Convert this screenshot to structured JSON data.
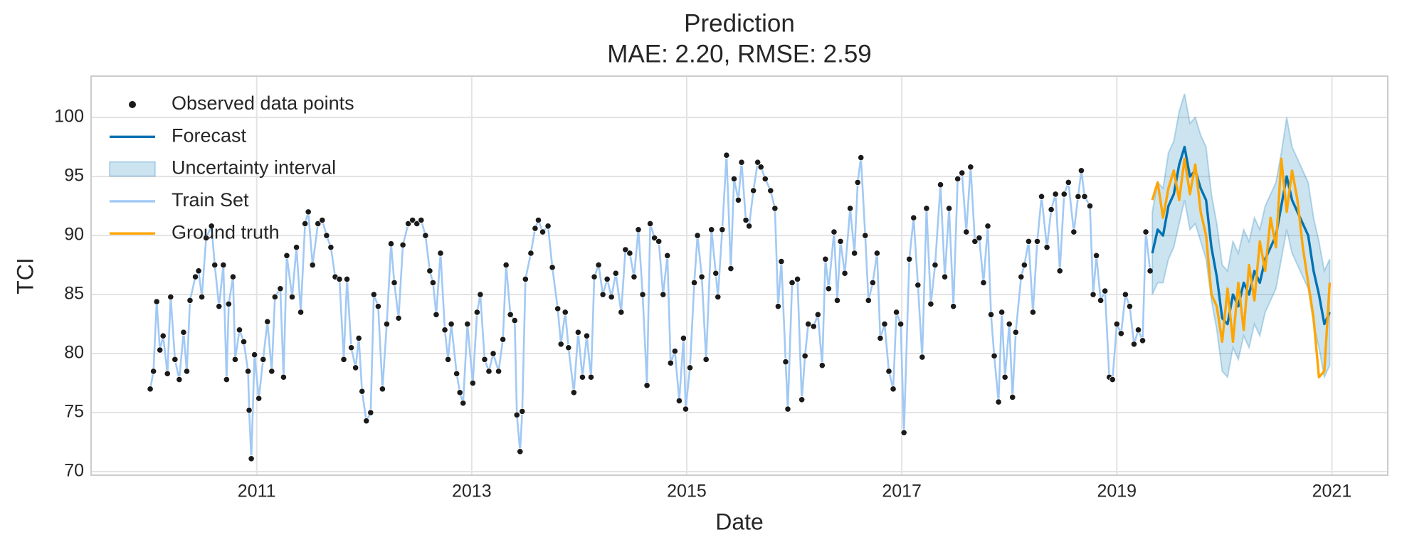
{
  "chart_data": {
    "type": "line",
    "title": "Prediction",
    "subtitle": "MAE: 2.20, RMSE: 2.59",
    "x_label": "Date",
    "y_label": "TCI",
    "xlim": [
      2009.46,
      2021.52
    ],
    "ylim": [
      69.7,
      103.5
    ],
    "xticks": [
      2011,
      2013,
      2015,
      2017,
      2019,
      2021
    ],
    "yticks": [
      70,
      75,
      80,
      85,
      90,
      95,
      100
    ],
    "grid": true,
    "legend": "upper left",
    "x": [
      2010.01,
      2010.04,
      2010.07,
      2010.1,
      2010.13,
      2010.17,
      2010.2,
      2010.24,
      2010.28,
      2010.32,
      2010.35,
      2010.38,
      2010.43,
      2010.46,
      2010.49,
      2010.53,
      2010.58,
      2010.61,
      2010.65,
      2010.69,
      2010.72,
      2010.74,
      2010.78,
      2010.8,
      2010.84,
      2010.88,
      2010.92,
      2010.93,
      2010.95,
      2010.98,
      2011.02,
      2011.06,
      2011.1,
      2011.14,
      2011.17,
      2011.22,
      2011.25,
      2011.28,
      2011.33,
      2011.37,
      2011.41,
      2011.45,
      2011.48,
      2011.52,
      2011.57,
      2011.61,
      2011.65,
      2011.69,
      2011.73,
      2011.77,
      2011.81,
      2011.84,
      2011.88,
      2011.92,
      2011.95,
      2011.98,
      2012.02,
      2012.06,
      2012.09,
      2012.13,
      2012.17,
      2012.21,
      2012.25,
      2012.28,
      2012.32,
      2012.36,
      2012.41,
      2012.45,
      2012.49,
      2012.53,
      2012.57,
      2012.61,
      2012.64,
      2012.67,
      2012.71,
      2012.75,
      2012.78,
      2012.81,
      2012.86,
      2012.89,
      2012.92,
      2012.96,
      2013.01,
      2013.05,
      2013.08,
      2013.12,
      2013.16,
      2013.2,
      2013.25,
      2013.29,
      2013.32,
      2013.36,
      2013.4,
      2013.42,
      2013.45,
      2013.47,
      2013.5,
      2013.55,
      2013.59,
      2013.62,
      2013.66,
      2013.71,
      2013.75,
      2013.8,
      2013.83,
      2013.87,
      2013.9,
      2013.95,
      2013.99,
      2014.03,
      2014.07,
      2014.11,
      2014.14,
      2014.18,
      2014.22,
      2014.26,
      2014.3,
      2014.34,
      2014.39,
      2014.43,
      2014.47,
      2014.51,
      2014.55,
      2014.59,
      2014.63,
      2014.66,
      2014.7,
      2014.74,
      2014.78,
      2014.82,
      2014.85,
      2014.89,
      2014.93,
      2014.97,
      2014.99,
      2015.03,
      2015.07,
      2015.1,
      2015.14,
      2015.18,
      2015.23,
      2015.27,
      2015.29,
      2015.33,
      2015.37,
      2015.41,
      2015.44,
      2015.48,
      2015.51,
      2015.55,
      2015.58,
      2015.62,
      2015.66,
      2015.69,
      2015.73,
      2015.78,
      2015.82,
      2015.85,
      2015.88,
      2015.92,
      2015.94,
      2015.98,
      2016.03,
      2016.07,
      2016.1,
      2016.13,
      2016.18,
      2016.22,
      2016.26,
      2016.29,
      2016.32,
      2016.37,
      2016.4,
      2016.43,
      2016.47,
      2016.52,
      2016.56,
      2016.59,
      2016.62,
      2016.66,
      2016.69,
      2016.73,
      2016.77,
      2016.8,
      2016.84,
      2016.88,
      2016.92,
      2016.95,
      2016.99,
      2017.02,
      2017.07,
      2017.11,
      2017.15,
      2017.19,
      2017.23,
      2017.27,
      2017.31,
      2017.36,
      2017.4,
      2017.44,
      2017.48,
      2017.52,
      2017.56,
      2017.6,
      2017.64,
      2017.68,
      2017.72,
      2017.76,
      2017.8,
      2017.83,
      2017.86,
      2017.9,
      2017.93,
      2017.96,
      2018.0,
      2018.03,
      2018.06,
      2018.11,
      2018.14,
      2018.18,
      2018.22,
      2018.26,
      2018.3,
      2018.35,
      2018.39,
      2018.43,
      2018.47,
      2018.51,
      2018.55,
      2018.6,
      2018.64,
      2018.67,
      2018.7,
      2018.75,
      2018.78,
      2018.81,
      2018.85,
      2018.89,
      2018.93,
      2018.96,
      2019.0,
      2019.04,
      2019.08,
      2019.12,
      2019.16,
      2019.2,
      2019.24,
      2019.27,
      2019.31
    ],
    "series": [
      {
        "name": "Observed data points",
        "kind": "scatter",
        "color": "#1a1a1a",
        "values": [
          77,
          78.5,
          84.4,
          80.3,
          81.5,
          78.3,
          84.8,
          79.5,
          77.8,
          81.8,
          78.5,
          84.5,
          86.5,
          87,
          84.8,
          89.8,
          90.8,
          87.5,
          84,
          87.5,
          77.8,
          84.2,
          86.5,
          79.5,
          82,
          81,
          78.5,
          75.2,
          71.1,
          79.9,
          76.2,
          79.5,
          82.7,
          78.5,
          84.8,
          85.5,
          78,
          88.3,
          84.8,
          89,
          83.5,
          91,
          92,
          87.5,
          91,
          91.3,
          90,
          89,
          86.5,
          86.3,
          79.5,
          86.3,
          80.5,
          78.8,
          81.3,
          76.8,
          74.3,
          75,
          85,
          84,
          77,
          82.5,
          89.3,
          86,
          83,
          89.2,
          91,
          91.3,
          91,
          91.3,
          90,
          87,
          86,
          83.3,
          88.5,
          82,
          79.5,
          82.5,
          78.3,
          76.7,
          75.8,
          82.5,
          77.5,
          83.5,
          85,
          79.5,
          78.5,
          80,
          78.5,
          81.2,
          87.5,
          83.3,
          82.8,
          74.8,
          71.7,
          75.1,
          86.3,
          88.5,
          90.6,
          91.3,
          90.3,
          90.8,
          87.3,
          83.8,
          80.8,
          83.5,
          80.5,
          76.7,
          81.8,
          78,
          81.5,
          78,
          86.5,
          87.5,
          85,
          86.3,
          84.8,
          86.8,
          83.5,
          88.8,
          88.5,
          86.5,
          90.5,
          85,
          77.3,
          91,
          89.8,
          89.5,
          85,
          88.3,
          79.2,
          80.2,
          76,
          81.3,
          75.3,
          78.8,
          86,
          90,
          86.5,
          79.5,
          90.5,
          86.8,
          84.8,
          90.5,
          96.8,
          87.2,
          94.8,
          93,
          96.2,
          91.3,
          90.8,
          93.8,
          96.2,
          95.8,
          94.8,
          93.8,
          92.3,
          84,
          87.8,
          79.3,
          75.3,
          86,
          86.3,
          76.1,
          79.8,
          82.5,
          82.3,
          83.3,
          79,
          88,
          85.5,
          90.3,
          84.5,
          89.5,
          86.8,
          92.3,
          88.5,
          94.5,
          96.6,
          90,
          84.5,
          86,
          88.5,
          81.3,
          82.5,
          78.5,
          77,
          83.5,
          82.5,
          73.3,
          88,
          91.5,
          85.8,
          79.7,
          92.3,
          84.2,
          87.5,
          94.3,
          86.5,
          92.3,
          84,
          94.8,
          95.3,
          90.3,
          95.8,
          89.5,
          89.8,
          86,
          90.8,
          83.3,
          79.8,
          75.9,
          83.5,
          78,
          82.5,
          76.3,
          81.8,
          86.5,
          87.5,
          89.5,
          83.5,
          89.5,
          93.3,
          89,
          92.2,
          93.5,
          87,
          93.5,
          94.5,
          90.3,
          93.3,
          95.5,
          93.3,
          92.5,
          85,
          88.3,
          84.5,
          85.3,
          78,
          77.8,
          82.5,
          81.7,
          85,
          84,
          80.8,
          82,
          81.1,
          90.3,
          87
        ]
      },
      {
        "name": "Forecast",
        "kind": "line",
        "color": "#0072b2",
        "x": [
          2019.33,
          2019.38,
          2019.43,
          2019.48,
          2019.53,
          2019.58,
          2019.63,
          2019.68,
          2019.73,
          2019.78,
          2019.83,
          2019.88,
          2019.93,
          2019.98,
          2020.03,
          2020.08,
          2020.13,
          2020.18,
          2020.23,
          2020.28,
          2020.33,
          2020.38,
          2020.43,
          2020.48,
          2020.53,
          2020.58,
          2020.63,
          2020.68,
          2020.73,
          2020.78,
          2020.83,
          2020.88,
          2020.93,
          2020.98
        ],
        "values": [
          88.5,
          90.5,
          90,
          92.5,
          93.5,
          96,
          97.5,
          95,
          95.5,
          94,
          93,
          89,
          86.5,
          83,
          82.5,
          85,
          84,
          86,
          85,
          87,
          86,
          88,
          89,
          90,
          92.5,
          95,
          93,
          92,
          91,
          90,
          87,
          85,
          82.5,
          83.5
        ]
      },
      {
        "name": "Uncertainty interval",
        "kind": "band",
        "color": "#0072b2",
        "x": [
          2019.33,
          2019.38,
          2019.43,
          2019.48,
          2019.53,
          2019.58,
          2019.63,
          2019.68,
          2019.73,
          2019.78,
          2019.83,
          2019.88,
          2019.93,
          2019.98,
          2020.03,
          2020.08,
          2020.13,
          2020.18,
          2020.23,
          2020.28,
          2020.33,
          2020.38,
          2020.43,
          2020.48,
          2020.53,
          2020.58,
          2020.63,
          2020.68,
          2020.73,
          2020.78,
          2020.83,
          2020.88,
          2020.93,
          2020.98
        ],
        "lower": [
          85,
          86,
          86,
          88,
          89,
          91,
          93,
          90.5,
          91,
          89.5,
          88,
          84.5,
          82,
          78.5,
          78,
          80.5,
          79.5,
          81.5,
          80.5,
          82.5,
          81.5,
          83.5,
          84.5,
          85.5,
          88,
          90.5,
          88.5,
          87.5,
          86.5,
          85.5,
          82.5,
          80.5,
          78,
          79
        ],
        "upper": [
          92,
          94.5,
          94,
          97,
          98,
          100.5,
          102,
          99.5,
          100,
          98.5,
          97.5,
          93.5,
          91,
          87.5,
          87,
          89.5,
          88.5,
          90.5,
          89.5,
          91.5,
          90.5,
          92.5,
          93.5,
          94.5,
          97,
          100,
          97.5,
          96.5,
          95.5,
          94.5,
          91.5,
          89.5,
          87,
          88
        ]
      },
      {
        "name": "Train Set",
        "kind": "line",
        "color": "#a1c9f4",
        "values": [
          77,
          78.5,
          84.4,
          80.3,
          81.5,
          78.3,
          84.8,
          79.5,
          77.8,
          81.8,
          78.5,
          84.5,
          86.5,
          87,
          84.8,
          89.8,
          90.8,
          87.5,
          84,
          87.5,
          77.8,
          84.2,
          86.5,
          79.5,
          82,
          81,
          78.5,
          75.2,
          71.1,
          79.9,
          76.2,
          79.5,
          82.7,
          78.5,
          84.8,
          85.5,
          78,
          88.3,
          84.8,
          89,
          83.5,
          91,
          92,
          87.5,
          91,
          91.3,
          90,
          89,
          86.5,
          86.3,
          79.5,
          86.3,
          80.5,
          78.8,
          81.3,
          76.8,
          74.3,
          75,
          85,
          84,
          77,
          82.5,
          89.3,
          86,
          83,
          89.2,
          91,
          91.3,
          91,
          91.3,
          90,
          87,
          86,
          83.3,
          88.5,
          82,
          79.5,
          82.5,
          78.3,
          76.7,
          75.8,
          82.5,
          77.5,
          83.5,
          85,
          79.5,
          78.5,
          80,
          78.5,
          81.2,
          87.5,
          83.3,
          82.8,
          74.8,
          71.7,
          75.1,
          86.3,
          88.5,
          90.6,
          91.3,
          90.3,
          90.8,
          87.3,
          83.8,
          80.8,
          83.5,
          80.5,
          76.7,
          81.8,
          78,
          81.5,
          78,
          86.5,
          87.5,
          85,
          86.3,
          84.8,
          86.8,
          83.5,
          88.8,
          88.5,
          86.5,
          90.5,
          85,
          77.3,
          91,
          89.8,
          89.5,
          85,
          88.3,
          79.2,
          80.2,
          76,
          81.3,
          75.3,
          78.8,
          86,
          90,
          86.5,
          79.5,
          90.5,
          86.8,
          84.8,
          90.5,
          96.8,
          87.2,
          94.8,
          93,
          96.2,
          91.3,
          90.8,
          93.8,
          96.2,
          95.8,
          94.8,
          93.8,
          92.3,
          84,
          87.8,
          79.3,
          75.3,
          86,
          86.3,
          76.1,
          79.8,
          82.5,
          82.3,
          83.3,
          79,
          88,
          85.5,
          90.3,
          84.5,
          89.5,
          86.8,
          92.3,
          88.5,
          94.5,
          96.6,
          90,
          84.5,
          86,
          88.5,
          81.3,
          82.5,
          78.5,
          77,
          83.5,
          82.5,
          73.3,
          88,
          91.5,
          85.8,
          79.7,
          92.3,
          84.2,
          87.5,
          94.3,
          86.5,
          92.3,
          84,
          94.8,
          95.3,
          90.3,
          95.8,
          89.5,
          89.8,
          86,
          90.8,
          83.3,
          79.8,
          75.9,
          83.5,
          78,
          82.5,
          76.3,
          81.8,
          86.5,
          87.5,
          89.5,
          83.5,
          89.5,
          93.3,
          89,
          92.2,
          93.5,
          87,
          93.5,
          94.5,
          90.3,
          93.3,
          95.5,
          93.3,
          92.5,
          85,
          88.3,
          84.5,
          85.3,
          78,
          77.8,
          82.5,
          81.7,
          85,
          84,
          80.8,
          82,
          81.1,
          90.3,
          87
        ]
      },
      {
        "name": "Ground truth",
        "kind": "line",
        "color": "#ffa500",
        "x": [
          2019.33,
          2019.38,
          2019.43,
          2019.48,
          2019.53,
          2019.58,
          2019.63,
          2019.68,
          2019.73,
          2019.78,
          2019.83,
          2019.88,
          2019.93,
          2019.98,
          2020.03,
          2020.08,
          2020.13,
          2020.18,
          2020.23,
          2020.28,
          2020.33,
          2020.38,
          2020.43,
          2020.48,
          2020.53,
          2020.58,
          2020.63,
          2020.68,
          2020.73,
          2020.78,
          2020.83,
          2020.88,
          2020.93,
          2020.98
        ],
        "values": [
          93,
          94.5,
          91.5,
          94,
          95.5,
          93,
          96.5,
          93.5,
          96,
          92,
          90,
          85,
          84,
          81,
          85.5,
          81,
          86,
          82,
          87.5,
          84.5,
          89.5,
          87,
          91.5,
          89,
          96.5,
          92,
          95.5,
          93,
          89,
          86,
          83,
          78,
          78.5,
          86
        ]
      }
    ]
  }
}
